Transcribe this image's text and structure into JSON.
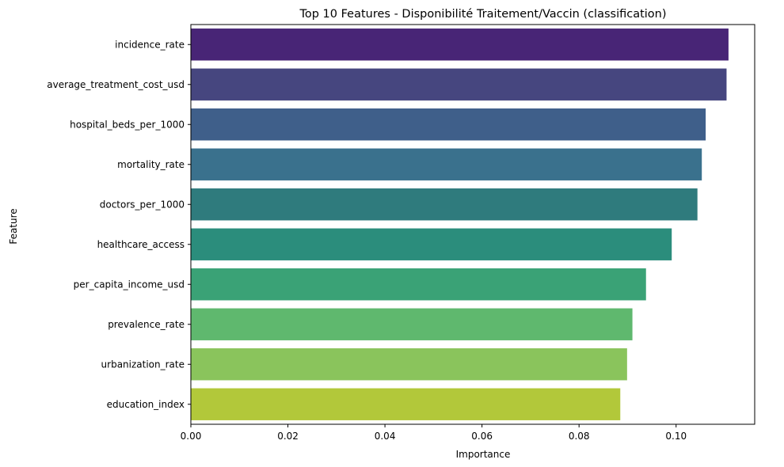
{
  "chart_data": {
    "type": "bar",
    "orientation": "horizontal",
    "title": "Top 10 Features - Disponibilité Traitement/Vaccin (classification)",
    "xlabel": "Importance",
    "ylabel": "Feature",
    "categories": [
      "incidence_rate",
      "average_treatment_cost_usd",
      "hospital_beds_per_1000",
      "mortality_rate",
      "doctors_per_1000",
      "healthcare_access",
      "per_capita_income_usd",
      "prevalence_rate",
      "urbanization_rate",
      "education_index"
    ],
    "values": [
      0.1108,
      0.1104,
      0.1061,
      0.1053,
      0.1044,
      0.0991,
      0.0938,
      0.091,
      0.0899,
      0.0885
    ],
    "colors": [
      "#482576",
      "#46467f",
      "#3f5f8a",
      "#3a718d",
      "#2f7b7d",
      "#2b8d7c",
      "#3aa276",
      "#5fb86e",
      "#8ac45c",
      "#b2c83a"
    ],
    "xlim": [
      0,
      0.1162
    ],
    "xticks": [
      "0.00",
      "0.02",
      "0.04",
      "0.06",
      "0.08",
      "0.10"
    ],
    "xtick_values": [
      0,
      0.02,
      0.04,
      0.06,
      0.08,
      0.1
    ],
    "grid": false,
    "legend": "none"
  }
}
